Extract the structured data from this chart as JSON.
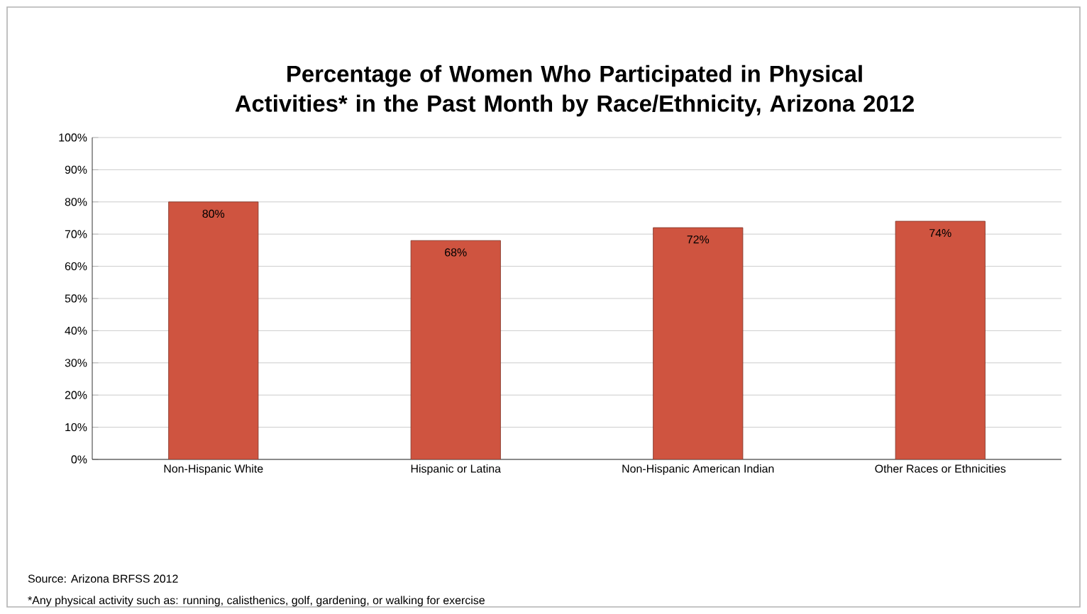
{
  "chart_data": {
    "type": "bar",
    "title": "Percentage of Women Who Participated in Physical Activities* in the Past Month by Race/Ethnicity, Arizona 2012",
    "categories": [
      "Non-Hispanic White",
      "Hispanic or Latina",
      "Non-Hispanic American Indian",
      "Other Races or Ethnicities"
    ],
    "values": [
      80,
      68,
      72,
      74
    ],
    "value_labels": [
      "80%",
      "68%",
      "72%",
      "74%"
    ],
    "color": "#cf5440",
    "ylim": [
      0,
      100
    ],
    "yticks": [
      {
        "value": 0,
        "label": "0%"
      },
      {
        "value": 10,
        "label": "10%"
      },
      {
        "value": 20,
        "label": "20%"
      },
      {
        "value": 30,
        "label": "30%"
      },
      {
        "value": 40,
        "label": "40%"
      },
      {
        "value": 50,
        "label": "50%"
      },
      {
        "value": 60,
        "label": "60%"
      },
      {
        "value": 70,
        "label": "70%"
      },
      {
        "value": 80,
        "label": "80%"
      },
      {
        "value": 90,
        "label": "90%"
      },
      {
        "value": 100,
        "label": "100%"
      }
    ],
    "grid": "y",
    "annotations": [
      "Source: Arizona BRFSS 2012",
      "*Any physical activity such as: running, calisthenics, golf, gardening, or walking for exercise"
    ]
  }
}
